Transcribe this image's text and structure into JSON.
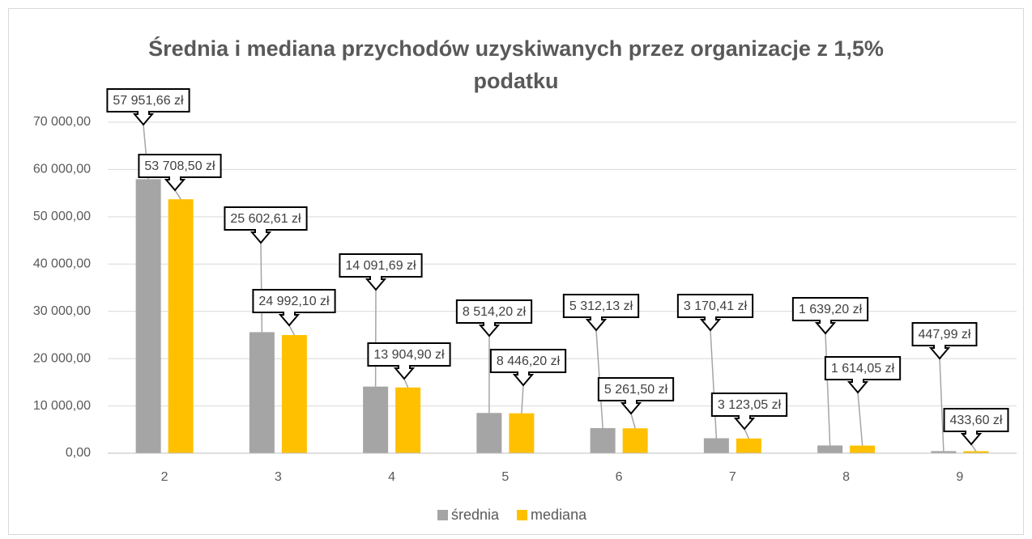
{
  "chart_data": {
    "type": "bar",
    "title": "Średnia i mediana przychodów uzyskiwanych przez organizacje z 1,5% podatku",
    "categories": [
      "2",
      "3",
      "4",
      "5",
      "6",
      "7",
      "8",
      "9"
    ],
    "series": [
      {
        "name": "średnia",
        "color": "#a5a5a5",
        "values": [
          57951.66,
          25602.61,
          14091.69,
          8514.2,
          5312.13,
          3170.41,
          1639.2,
          447.99
        ],
        "value_labels": [
          "57 951,66 zł",
          "25 602,61 zł",
          "14 091,69 zł",
          "8 514,20 zł",
          "5 312,13 zł",
          "3 170,41 zł",
          "1 639,20 zł",
          "447,99 zł"
        ]
      },
      {
        "name": "mediana",
        "color": "#ffc000",
        "values": [
          53708.5,
          24992.1,
          13904.9,
          8446.2,
          5261.5,
          3123.05,
          1614.05,
          433.6
        ],
        "value_labels": [
          "53 708,50 zł",
          "24 992,10 zł",
          "13 904,90 zł",
          "8 446,20 zł",
          "5 261,50 zł",
          "3 123,05 zł",
          "1 614,05 zł",
          "433,60 zł"
        ]
      }
    ],
    "ylim": [
      0,
      70000
    ],
    "yticks": [
      {
        "value": 0,
        "label": "0,00"
      },
      {
        "value": 10000,
        "label": "10 000,00"
      },
      {
        "value": 20000,
        "label": "20 000,00"
      },
      {
        "value": 30000,
        "label": "30 000,00"
      },
      {
        "value": 40000,
        "label": "40 000,00"
      },
      {
        "value": 50000,
        "label": "50 000,00"
      },
      {
        "value": 60000,
        "label": "60 000,00"
      },
      {
        "value": 70000,
        "label": "70 000,00"
      }
    ],
    "grid": true,
    "legend": "bottom"
  }
}
